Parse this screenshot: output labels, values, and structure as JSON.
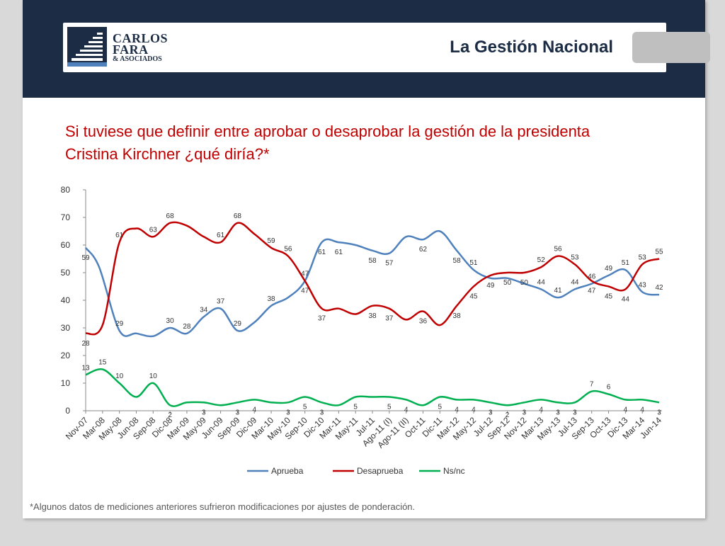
{
  "header": {
    "logo": {
      "line1": "CARLOS",
      "line2": "FARA",
      "line3": "& ASOCIADOS"
    },
    "section_title": "La Gestión Nacional",
    "band_color": "#1b2c44"
  },
  "question": "Si tuviese que definir entre aprobar o desaprobar la gestión de la presidenta Cristina Kirchner ¿qué diría?*",
  "footnote": "*Algunos datos de mediciones anteriores sufrieron modificaciones por ajustes de ponderación.",
  "chart_data": {
    "type": "line",
    "title": "",
    "xlabel": "",
    "ylabel": "",
    "ylim": [
      0,
      80
    ],
    "yticks": [
      "0",
      "10",
      "20",
      "30",
      "40",
      "50",
      "60",
      "70",
      "80"
    ],
    "grid": false,
    "legend_position": "bottom",
    "x_tick_labels": [
      "Nov-07",
      "Mar-08",
      "May-08",
      "Jun-08",
      "Sep-08",
      "Dic-08",
      "Mar-09",
      "May-09",
      "Jun-09",
      "Sep-09",
      "Dic-09",
      "Mar-10",
      "May-10",
      "Sep-10",
      "Dic-10",
      "Mar-11",
      "May-11",
      "Jul-11",
      "Ago-11 (I)",
      "Ago-11 (II)",
      "Oct-11",
      "Dic-11",
      "Mar-12",
      "May-12",
      "Jul-12",
      "Sep-12",
      "Nov-12",
      "Mar-13",
      "May-13",
      "Jul-13",
      "Sep-13",
      "Oct-13",
      "Dic-13",
      "Mar-14",
      "Jun-14"
    ],
    "series": [
      {
        "name": "Aprueba",
        "color": "#4f81bd",
        "points": [
          {
            "x": 0.0,
            "y": 59,
            "label": "59"
          },
          {
            "x": 0.8,
            "y": 52
          },
          {
            "x": 2.0,
            "y": 29,
            "label": "29"
          },
          {
            "x": 3.0,
            "y": 28
          },
          {
            "x": 4.0,
            "y": 27
          },
          {
            "x": 5.0,
            "y": 30,
            "label": "30"
          },
          {
            "x": 6.0,
            "y": 28,
            "label": "28"
          },
          {
            "x": 7.0,
            "y": 34,
            "label": "34"
          },
          {
            "x": 8.0,
            "y": 37,
            "label": "37"
          },
          {
            "x": 9.0,
            "y": 29,
            "label": "29"
          },
          {
            "x": 10.0,
            "y": 32
          },
          {
            "x": 11.0,
            "y": 38,
            "label": "38"
          },
          {
            "x": 12.0,
            "y": 41
          },
          {
            "x": 13.0,
            "y": 47,
            "label": "47"
          },
          {
            "x": 14.0,
            "y": 61,
            "label": "61"
          },
          {
            "x": 15.0,
            "y": 61,
            "label": "61"
          },
          {
            "x": 16.0,
            "y": 60
          },
          {
            "x": 17.0,
            "y": 58,
            "label": "58"
          },
          {
            "x": 18.0,
            "y": 57,
            "label": "57"
          },
          {
            "x": 19.0,
            "y": 63
          },
          {
            "x": 20.0,
            "y": 62,
            "label": "62"
          },
          {
            "x": 21.0,
            "y": 65
          },
          {
            "x": 22.0,
            "y": 58,
            "label": "58"
          },
          {
            "x": 23.0,
            "y": 51,
            "label": "51"
          },
          {
            "x": 24.0,
            "y": 48
          },
          {
            "x": 25.0,
            "y": 48
          },
          {
            "x": 26.0,
            "y": 46
          },
          {
            "x": 27.0,
            "y": 44,
            "label": "44"
          },
          {
            "x": 28.0,
            "y": 41,
            "label": "41"
          },
          {
            "x": 29.0,
            "y": 44,
            "label": "44"
          },
          {
            "x": 30.0,
            "y": 46,
            "label": "46"
          },
          {
            "x": 31.0,
            "y": 49,
            "label": "49"
          },
          {
            "x": 32.0,
            "y": 51,
            "label": "51"
          },
          {
            "x": 33.0,
            "y": 43,
            "label": "43"
          },
          {
            "x": 34.0,
            "y": 42,
            "label": "42"
          }
        ]
      },
      {
        "name": "Desaprueba",
        "color": "#c00000",
        "points": [
          {
            "x": 0.0,
            "y": 28,
            "label": "28"
          },
          {
            "x": 1.0,
            "y": 31
          },
          {
            "x": 2.0,
            "y": 61,
            "label": "61"
          },
          {
            "x": 3.0,
            "y": 66
          },
          {
            "x": 4.0,
            "y": 63,
            "label": "63"
          },
          {
            "x": 5.0,
            "y": 68,
            "label": "68"
          },
          {
            "x": 6.0,
            "y": 67
          },
          {
            "x": 7.0,
            "y": 63
          },
          {
            "x": 8.0,
            "y": 61,
            "label": "61"
          },
          {
            "x": 9.0,
            "y": 68,
            "label": "68"
          },
          {
            "x": 10.0,
            "y": 64
          },
          {
            "x": 11.0,
            "y": 59,
            "label": "59"
          },
          {
            "x": 12.0,
            "y": 56,
            "label": "56"
          },
          {
            "x": 13.0,
            "y": 47,
            "label": "47"
          },
          {
            "x": 14.0,
            "y": 37,
            "label": "37"
          },
          {
            "x": 15.0,
            "y": 37
          },
          {
            "x": 16.0,
            "y": 35
          },
          {
            "x": 17.0,
            "y": 38,
            "label": "38"
          },
          {
            "x": 18.0,
            "y": 37,
            "label": "37"
          },
          {
            "x": 19.0,
            "y": 33
          },
          {
            "x": 20.0,
            "y": 36,
            "label": "36"
          },
          {
            "x": 21.0,
            "y": 31
          },
          {
            "x": 22.0,
            "y": 38,
            "label": "38"
          },
          {
            "x": 23.0,
            "y": 45,
            "label": "45"
          },
          {
            "x": 24.0,
            "y": 49,
            "label": "49"
          },
          {
            "x": 25.0,
            "y": 50,
            "label": "50"
          },
          {
            "x": 26.0,
            "y": 50,
            "label": "50"
          },
          {
            "x": 27.0,
            "y": 52,
            "label": "52"
          },
          {
            "x": 28.0,
            "y": 56,
            "label": "56"
          },
          {
            "x": 29.0,
            "y": 53,
            "label": "53"
          },
          {
            "x": 30.0,
            "y": 47,
            "label": "47"
          },
          {
            "x": 31.0,
            "y": 45,
            "label": "45"
          },
          {
            "x": 32.0,
            "y": 44,
            "label": "44"
          },
          {
            "x": 33.0,
            "y": 53,
            "label": "53"
          },
          {
            "x": 34.0,
            "y": 55,
            "label": "55"
          }
        ]
      },
      {
        "name": "Ns/nc",
        "color": "#00b050",
        "points": [
          {
            "x": 0.0,
            "y": 13,
            "label": "13"
          },
          {
            "x": 1.0,
            "y": 15,
            "label": "15"
          },
          {
            "x": 2.0,
            "y": 10,
            "label": "10"
          },
          {
            "x": 3.0,
            "y": 5
          },
          {
            "x": 4.0,
            "y": 10,
            "label": "10"
          },
          {
            "x": 5.0,
            "y": 2,
            "label": "2"
          },
          {
            "x": 6.0,
            "y": 3
          },
          {
            "x": 7.0,
            "y": 3,
            "label": "3"
          },
          {
            "x": 8.0,
            "y": 2
          },
          {
            "x": 9.0,
            "y": 3,
            "label": "3"
          },
          {
            "x": 10.0,
            "y": 4,
            "label": "4"
          },
          {
            "x": 11.0,
            "y": 3
          },
          {
            "x": 12.0,
            "y": 3,
            "label": "3"
          },
          {
            "x": 13.0,
            "y": 5,
            "label": "5"
          },
          {
            "x": 14.0,
            "y": 3,
            "label": "3"
          },
          {
            "x": 15.0,
            "y": 2
          },
          {
            "x": 16.0,
            "y": 5,
            "label": "5"
          },
          {
            "x": 17.0,
            "y": 5
          },
          {
            "x": 18.0,
            "y": 5,
            "label": "5"
          },
          {
            "x": 19.0,
            "y": 4,
            "label": "4"
          },
          {
            "x": 20.0,
            "y": 2
          },
          {
            "x": 21.0,
            "y": 5,
            "label": "5"
          },
          {
            "x": 22.0,
            "y": 4,
            "label": "4"
          },
          {
            "x": 23.0,
            "y": 4,
            "label": "4"
          },
          {
            "x": 24.0,
            "y": 3,
            "label": "3"
          },
          {
            "x": 25.0,
            "y": 2,
            "label": "2"
          },
          {
            "x": 26.0,
            "y": 3,
            "label": "3"
          },
          {
            "x": 27.0,
            "y": 4,
            "label": "4"
          },
          {
            "x": 28.0,
            "y": 3,
            "label": "3"
          },
          {
            "x": 29.0,
            "y": 3,
            "label": "3"
          },
          {
            "x": 30.0,
            "y": 7,
            "label": "7"
          },
          {
            "x": 31.0,
            "y": 6,
            "label": "6"
          },
          {
            "x": 32.0,
            "y": 4,
            "label": "4"
          },
          {
            "x": 33.0,
            "y": 4,
            "label": "4"
          },
          {
            "x": 34.0,
            "y": 3,
            "label": "3"
          }
        ]
      }
    ]
  }
}
